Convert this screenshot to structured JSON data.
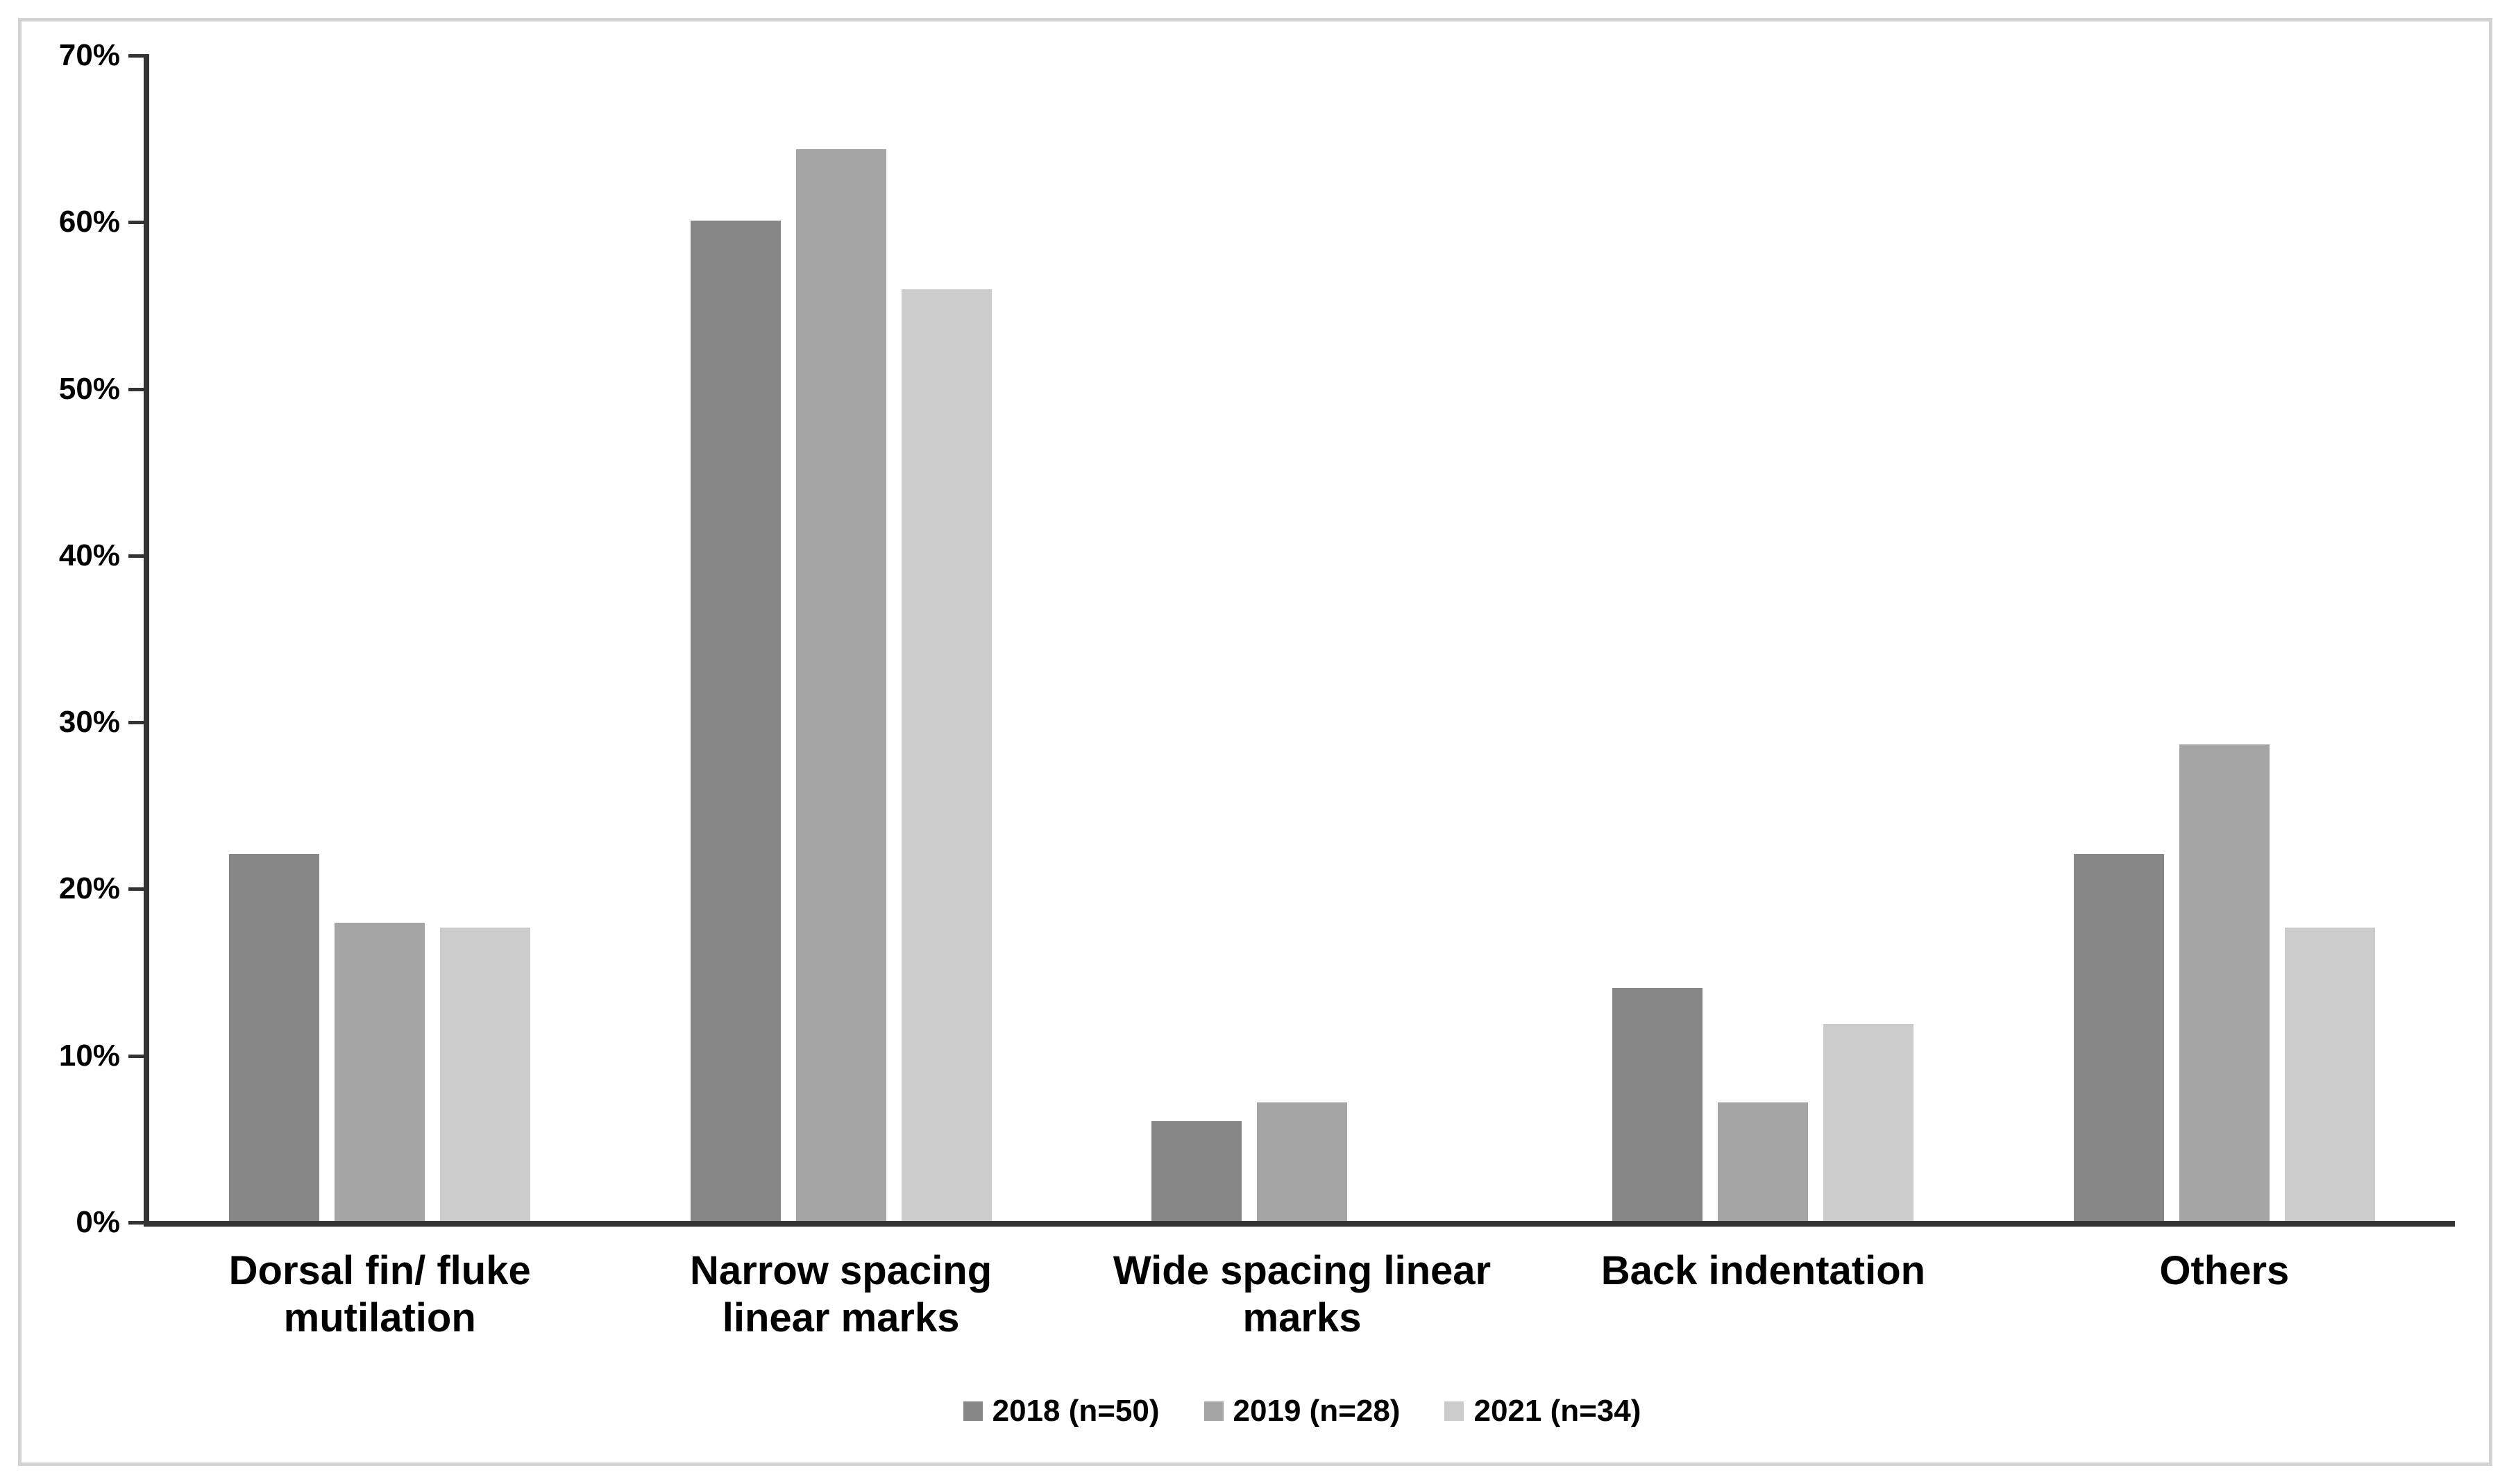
{
  "chart_data": {
    "type": "bar",
    "title": "",
    "xlabel": "",
    "ylabel": "",
    "ylim": [
      0,
      70
    ],
    "ytick_step": 10,
    "ytick_labels": [
      "0%",
      "10%",
      "20%",
      "30%",
      "40%",
      "50%",
      "60%",
      "70%"
    ],
    "grid": false,
    "legend_position": "bottom",
    "categories": [
      "Dorsal fin/ fluke\nmutilation",
      "Narrow spacing\nlinear marks",
      "Wide spacing linear\nmarks",
      "Back indentation",
      "Others"
    ],
    "series": [
      {
        "name": "2018 (n=50)",
        "color": "#878787",
        "values": [
          22.0,
          60.0,
          6.0,
          14.0,
          22.0
        ]
      },
      {
        "name": "2019 (n=28)",
        "color": "#a5a5a5",
        "values": [
          17.9,
          64.3,
          7.1,
          7.1,
          28.6
        ]
      },
      {
        "name": "2021 (n=34)",
        "color": "#cccccc",
        "values": [
          17.6,
          55.9,
          0,
          11.8,
          17.6
        ]
      }
    ],
    "colors": {
      "axis": "#333333",
      "text": "#000000",
      "frame_border": "#d3d3d3",
      "background": "#ffffff"
    }
  }
}
